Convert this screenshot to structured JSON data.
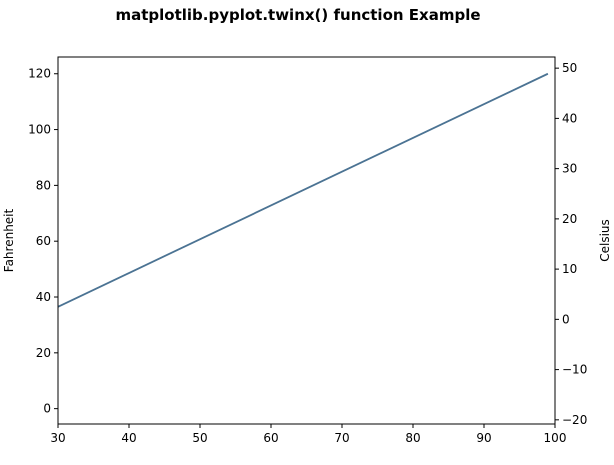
{
  "chart_data": {
    "type": "line",
    "title": "matplotlib.pyplot.twinx() function Example",
    "xlabel": "",
    "ylabel": "Fahrenheit",
    "y2label": "Celsius",
    "xlim": [
      30,
      100
    ],
    "ylim": [
      -5.5,
      126
    ],
    "y2lim": [
      -20.83,
      52.22
    ],
    "x_ticks": [
      30,
      40,
      50,
      60,
      70,
      80,
      90,
      100
    ],
    "y_ticks": [
      0,
      20,
      40,
      60,
      80,
      100,
      120
    ],
    "y2_ticks": [
      -20,
      -10,
      0,
      10,
      20,
      30,
      40,
      50
    ],
    "y2_tick_labels": [
      "−20",
      "−10",
      "0",
      "10",
      "20",
      "30",
      "40",
      "50"
    ],
    "series": [
      {
        "x": [
          30,
          99
        ],
        "values": [
          36.5,
          120
        ],
        "color": "#4b7393"
      }
    ],
    "grid": false,
    "legend": "none"
  }
}
